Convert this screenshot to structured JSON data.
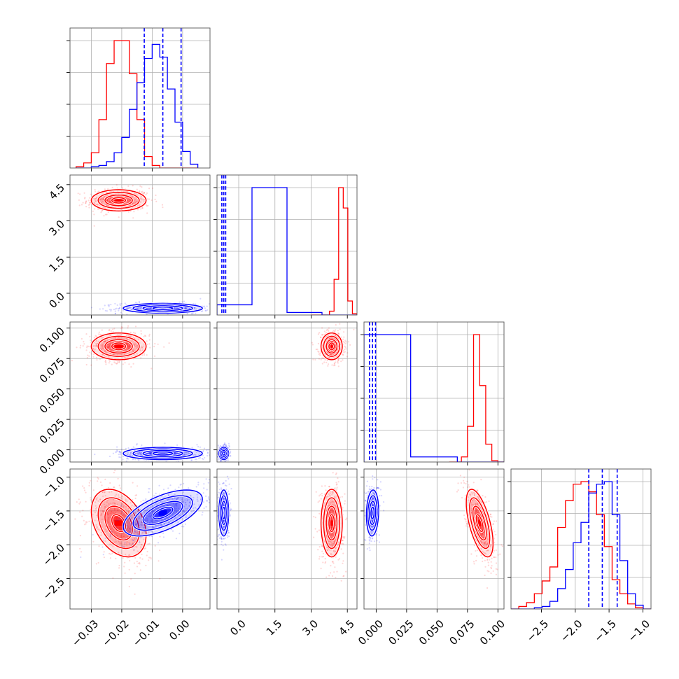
{
  "chart_data": {
    "type": "corner",
    "grid": true,
    "colors": {
      "series_a": "#ff0000",
      "series_b": "#0000ff"
    },
    "parameters": [
      {
        "index": 0,
        "range": [
          -0.037,
          0.009
        ],
        "ticks": [
          -0.03,
          -0.02,
          -0.01,
          0.0
        ],
        "tick_labels": [
          "−0.03",
          "−0.02",
          "−0.01",
          "0.00"
        ]
      },
      {
        "index": 1,
        "range": [
          -0.9,
          4.9
        ],
        "ticks": [
          0.0,
          1.5,
          3.0,
          4.5
        ],
        "tick_labels": [
          "0.0",
          "1.5",
          "3.0",
          "4.5"
        ]
      },
      {
        "index": 2,
        "range": [
          -0.01,
          0.105
        ],
        "ticks": [
          0.0,
          0.025,
          0.05,
          0.075,
          0.1
        ],
        "tick_labels": [
          "0.000",
          "0.025",
          "0.050",
          "0.075",
          "0.100"
        ]
      },
      {
        "index": 3,
        "range": [
          -2.95,
          -0.88
        ],
        "ticks": [
          -2.5,
          -2.0,
          -1.5,
          -1.0
        ],
        "tick_labels": [
          "−2.5",
          "−2.0",
          "−1.5",
          "−1.0"
        ]
      }
    ],
    "series": [
      {
        "color": "#ff0000",
        "mean": [
          -0.021,
          3.85,
          0.085,
          -1.68
        ],
        "std": [
          0.0045,
          0.22,
          0.0055,
          0.25
        ],
        "corr": {
          "0-3": -0.35,
          "2-3": -0.6
        },
        "hist": [
          {
            "lo": -0.035,
            "hi": 0.005,
            "counts": [
              1,
              4,
              12,
              38,
              82,
              100,
              100,
              74,
              38,
              9,
              2,
              0,
              0,
              0,
              0,
              0
            ]
          },
          {
            "lo": 3.0,
            "hi": 4.9,
            "counts": [
              0,
              0,
              0,
              0,
              3,
              28,
              100,
              84,
              11,
              1
            ]
          },
          {
            "lo": 0.06,
            "hi": 0.105,
            "counts": [
              0,
              0,
              4,
              28,
              100,
              60,
              14,
              1,
              0
            ]
          },
          {
            "lo": -2.95,
            "hi": -0.88,
            "counts": [
              0,
              2,
              5,
              12,
              22,
              33,
              64,
              85,
              98,
              100,
              92,
              74,
              49,
              23,
              12,
              4,
              1,
              0
            ]
          }
        ]
      },
      {
        "color": "#0000ff",
        "mean": [
          -0.0065,
          -0.62,
          -0.003,
          -1.53
        ],
        "std": [
          0.0065,
          0.1,
          0.0025,
          0.17
        ],
        "corr": {
          "0-3": 0.6,
          "2-3": 0.1
        },
        "hist": [
          {
            "lo": -0.035,
            "hi": 0.005,
            "counts": [
              0,
              0,
              1,
              2,
              5,
              12,
              24,
              46,
              67,
              86,
              97,
              87,
              62,
              36,
              13,
              3
            ]
          },
          {
            "lo": -0.9,
            "hi": 4.9,
            "counts": [
              8,
              100,
              2,
              0
            ]
          },
          {
            "lo": -0.01,
            "hi": 0.105,
            "counts": [
              100,
              4,
              0
            ]
          },
          {
            "lo": -2.95,
            "hi": -0.88,
            "counts": [
              0,
              0,
              0,
              1,
              2,
              6,
              16,
              31,
              52,
              68,
              91,
              98,
              100,
              74,
              38,
              12,
              3,
              0
            ]
          }
        ]
      }
    ],
    "quantiles": [
      [
        -0.0126,
        -0.0065,
        -0.0005
      ],
      [
        -0.7,
        -0.62,
        -0.54
      ],
      [
        -0.0055,
        -0.003,
        -0.0005
      ],
      [
        -1.8,
        -1.6,
        -1.38
      ]
    ]
  }
}
